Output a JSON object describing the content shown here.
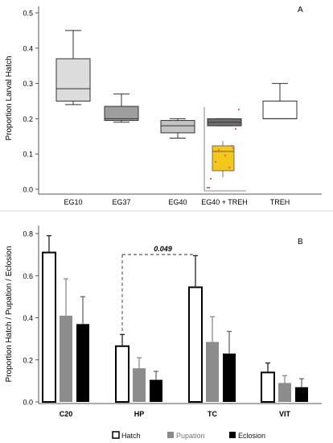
{
  "chart_data": [
    {
      "panel": "A",
      "type": "box",
      "ylabel": "Proportion Larval Hatch",
      "ylim": [
        0,
        0.5
      ],
      "yticks": [
        "0.0",
        "0.1",
        "0.2",
        "0.3",
        "0.4",
        "0.5"
      ],
      "categories": [
        "EG10",
        "EG37",
        "EG40",
        "EG40 + TREH",
        "TREH"
      ],
      "boxes": [
        {
          "category": "EG10",
          "min": 0.24,
          "q1": 0.25,
          "median": 0.285,
          "q3": 0.37,
          "max": 0.45,
          "fill": "#dcdcdc"
        },
        {
          "category": "EG37",
          "min": 0.19,
          "q1": 0.195,
          "median": 0.2,
          "q3": 0.235,
          "max": 0.27,
          "fill": "#9e9e9e"
        },
        {
          "category": "EG40",
          "min": 0.145,
          "q1": 0.16,
          "median": 0.18,
          "q3": 0.195,
          "max": 0.2,
          "fill": "#c4c4c4"
        },
        {
          "category": "EG40 + TREH",
          "min": 0.18,
          "q1": 0.18,
          "median": 0.19,
          "q3": 0.2,
          "max": 0.2,
          "fill": "#6f6f6f"
        },
        {
          "category": "TREH",
          "min": 0.2,
          "q1": 0.2,
          "median": 0.2,
          "q3": 0.25,
          "max": 0.3,
          "fill": "#ffffff"
        }
      ],
      "inset": {
        "box_color": "#f2c81a",
        "point_color": "#e8556e"
      }
    },
    {
      "panel": "B",
      "type": "bar",
      "ylabel": "Proportion Hatch / Pupation / Eclosion",
      "ylim": [
        0,
        0.8
      ],
      "yticks": [
        "0.0",
        "0.2",
        "0.4",
        "0.6",
        "0.8"
      ],
      "categories": [
        "C20",
        "HP",
        "TC",
        "VIT"
      ],
      "series": [
        {
          "name": "Hatch",
          "color": "#ffffff",
          "values": [
            0.71,
            0.265,
            0.545,
            0.14
          ],
          "errors": [
            0.08,
            0.055,
            0.15,
            0.045
          ]
        },
        {
          "name": "Pupation",
          "color": "#8c8c8c",
          "values": [
            0.41,
            0.16,
            0.285,
            0.09
          ],
          "errors": [
            0.175,
            0.05,
            0.12,
            0.035
          ]
        },
        {
          "name": "Eclosion",
          "color": "#000000",
          "values": [
            0.37,
            0.105,
            0.23,
            0.07
          ],
          "errors": [
            0.13,
            0.04,
            0.105,
            0.04
          ]
        }
      ],
      "annotation": {
        "text": "0.049",
        "between": [
          "HP",
          "TC"
        ],
        "series": "Hatch"
      }
    }
  ]
}
